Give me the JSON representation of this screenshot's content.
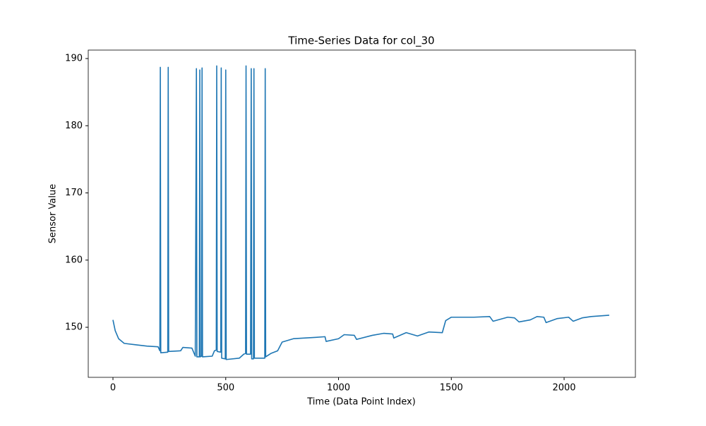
{
  "chart_data": {
    "type": "line",
    "title": "Time-Series Data for col_30",
    "x_label": "Time (Data Point Index)",
    "y_label": "Sensor Value",
    "x": [
      0,
      10,
      25,
      50,
      100,
      150,
      200,
      208,
      210,
      212,
      243,
      245,
      247,
      300,
      310,
      350,
      365,
      370,
      372,
      383,
      385,
      387,
      393,
      395,
      397,
      440,
      450,
      458,
      460,
      462,
      478,
      480,
      482,
      498,
      500,
      502,
      560,
      580,
      588,
      590,
      592,
      610,
      613,
      615,
      623,
      625,
      627,
      673,
      675,
      677,
      700,
      730,
      750,
      800,
      900,
      940,
      945,
      1000,
      1025,
      1070,
      1080,
      1150,
      1200,
      1240,
      1245,
      1300,
      1350,
      1400,
      1460,
      1475,
      1500,
      1600,
      1670,
      1685,
      1750,
      1780,
      1800,
      1850,
      1880,
      1910,
      1920,
      1970,
      2020,
      2040,
      2080,
      2120,
      2200
    ],
    "series": [
      {
        "color": "#1f77b4",
        "values": [
          151.1,
          149.5,
          148.3,
          147.6,
          147.4,
          147.2,
          147.1,
          146.5,
          188.7,
          146.2,
          146.3,
          188.7,
          146.4,
          146.5,
          147.0,
          146.9,
          145.7,
          188.5,
          145.6,
          145.6,
          188.3,
          145.6,
          145.7,
          188.6,
          145.6,
          145.7,
          146.5,
          146.6,
          188.9,
          146.4,
          146.3,
          188.6,
          145.4,
          145.3,
          188.3,
          145.2,
          145.4,
          146.0,
          146.1,
          188.9,
          146.0,
          146.0,
          188.5,
          145.3,
          145.3,
          188.5,
          145.4,
          145.4,
          188.5,
          145.6,
          146.1,
          146.5,
          147.8,
          148.3,
          148.5,
          148.6,
          147.9,
          148.3,
          148.9,
          148.8,
          148.2,
          148.8,
          149.1,
          149.0,
          148.4,
          149.2,
          148.7,
          149.3,
          149.2,
          151.0,
          151.5,
          151.5,
          151.6,
          150.9,
          151.5,
          151.4,
          150.8,
          151.1,
          151.6,
          151.5,
          150.7,
          151.3,
          151.5,
          150.9,
          151.4,
          151.6,
          151.8
        ]
      }
    ],
    "xlim": [
      -109.5,
      2316
    ],
    "ylim": [
      142.55,
      191.26
    ],
    "xticks": [
      0,
      500,
      1000,
      1500,
      2000
    ],
    "yticks": [
      150,
      160,
      170,
      180,
      190
    ]
  }
}
